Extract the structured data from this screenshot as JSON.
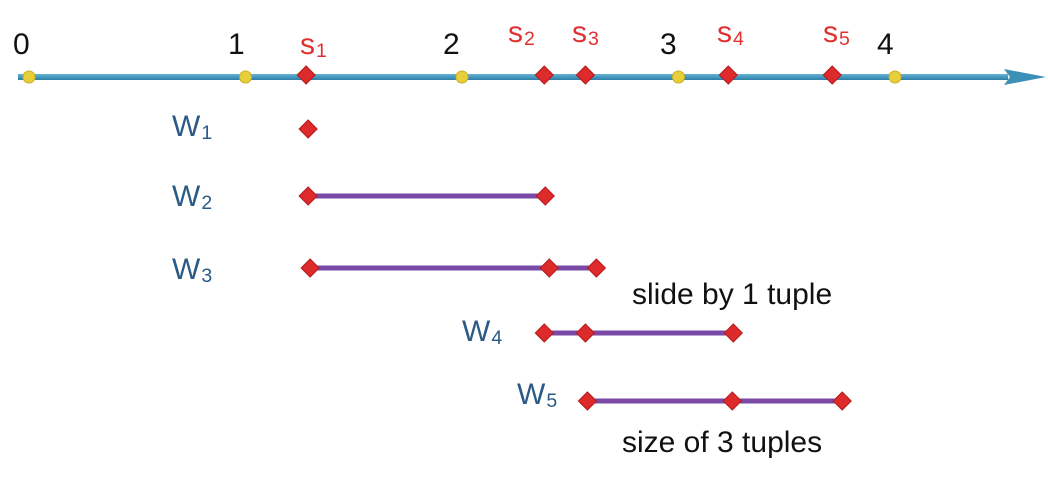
{
  "colors": {
    "axis": "#3c8fb6",
    "tick_dot": "#e8cf3a",
    "tuple": "#dd2a2a",
    "window_bar": "#7a4aa6",
    "window_label": "#2b5a86",
    "tuple_label": "#e03030"
  },
  "axis": {
    "ticks": [
      "0",
      "1",
      "2",
      "3",
      "4"
    ],
    "tick_values": [
      0,
      1,
      2,
      3,
      4
    ]
  },
  "tuples": [
    {
      "name": "s",
      "sub": "1",
      "time": 1.28
    },
    {
      "name": "s",
      "sub": "2",
      "time": 2.38
    },
    {
      "name": "s",
      "sub": "3",
      "time": 2.57
    },
    {
      "name": "s",
      "sub": "4",
      "time": 3.23
    },
    {
      "name": "s",
      "sub": "5",
      "time": 3.71
    }
  ],
  "windows": [
    {
      "name": "W",
      "sub": "1",
      "tuples": [
        0
      ]
    },
    {
      "name": "W",
      "sub": "2",
      "tuples": [
        0,
        1
      ]
    },
    {
      "name": "W",
      "sub": "3",
      "tuples": [
        0,
        1,
        2
      ]
    },
    {
      "name": "W",
      "sub": "4",
      "tuples": [
        1,
        2,
        3
      ]
    },
    {
      "name": "W",
      "sub": "5",
      "tuples": [
        2,
        3,
        4
      ]
    }
  ],
  "notes": {
    "slide": "slide by 1 tuple",
    "size": "size of 3 tuples"
  }
}
